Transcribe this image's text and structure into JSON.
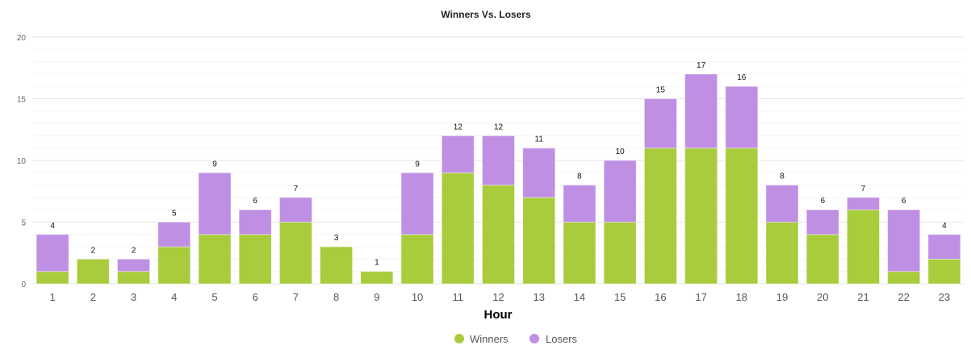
{
  "chart_data": {
    "type": "bar",
    "stacked": true,
    "title": "Winners Vs. Losers",
    "xlabel": "Hour",
    "ylabel": "",
    "ylim": [
      0,
      20
    ],
    "yticks": [
      "0",
      "5",
      "10",
      "15",
      "20"
    ],
    "grid": true,
    "legend_position": "bottom",
    "categories": [
      "1",
      "2",
      "3",
      "4",
      "5",
      "6",
      "7",
      "8",
      "9",
      "10",
      "11",
      "12",
      "13",
      "14",
      "15",
      "16",
      "17",
      "18",
      "19",
      "20",
      "21",
      "22",
      "23"
    ],
    "series": [
      {
        "name": "Winners",
        "color": "#a8cc3c",
        "values": [
          1,
          2,
          1,
          3,
          4,
          4,
          5,
          3,
          1,
          4,
          9,
          8,
          7,
          5,
          5,
          11,
          11,
          11,
          5,
          4,
          6,
          1,
          2
        ]
      },
      {
        "name": "Losers",
        "color": "#bf8fe4",
        "values": [
          3,
          0,
          1,
          2,
          5,
          2,
          2,
          0,
          0,
          5,
          3,
          4,
          4,
          3,
          5,
          4,
          6,
          5,
          3,
          2,
          1,
          5,
          2
        ]
      }
    ],
    "totals": [
      "4",
      "2",
      "2",
      "5",
      "9",
      "6",
      "7",
      "3",
      "1",
      "9",
      "12",
      "12",
      "11",
      "8",
      "10",
      "15",
      "17",
      "16",
      "8",
      "6",
      "7",
      "6",
      "4"
    ]
  }
}
